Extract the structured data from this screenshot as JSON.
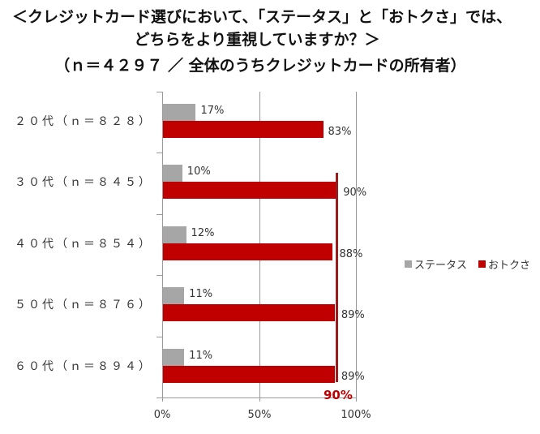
{
  "title": {
    "line1": "＜クレジットカード選びにおいて、「ステータス」と「おトクさ」では、",
    "line2": "どちらをより重視していますか？＞",
    "line3": "（ｎ＝４２９７ ／ 全体のうちクレジットカードの所有者）"
  },
  "legend": {
    "items": [
      {
        "label": "ステータス",
        "color": "#a6a6a6"
      },
      {
        "label": "おトクさ",
        "color": "#c00000"
      }
    ]
  },
  "reference": {
    "label": "90%",
    "value": 90,
    "color": "#9b1c1c"
  },
  "x_ticks": [
    "0%",
    "50%",
    "100%"
  ],
  "chart_data": {
    "type": "bar",
    "orientation": "horizontal",
    "title": "＜クレジットカード選びにおいて、「ステータス」と「おトクさ」では、どちらをより重視していますか？＞（ｎ＝４２９７ ／ 全体のうちクレジットカードの所有者）",
    "categories": [
      "２０代（ｎ＝８２８）",
      "３０代（ｎ＝８４５）",
      "４０代（ｎ＝８５４）",
      "５０代（ｎ＝８７６）",
      "６０代（ｎ＝８９４）"
    ],
    "series": [
      {
        "name": "ステータス",
        "color": "#a6a6a6",
        "values": [
          17,
          10,
          12,
          11,
          11
        ],
        "labels": [
          "17%",
          "10%",
          "12%",
          "11%",
          "11%"
        ]
      },
      {
        "name": "おトクさ",
        "color": "#c00000",
        "values": [
          83,
          90,
          88,
          89,
          89
        ],
        "labels": [
          "83%",
          "90%",
          "88%",
          "89%",
          "89%"
        ]
      }
    ],
    "annotations": [
      {
        "type": "vertical-line",
        "value": 90,
        "label": "90%",
        "range": "30代–60代"
      }
    ],
    "xlabel": "",
    "ylabel": "",
    "xlim": [
      0,
      100
    ],
    "x_tick_labels": [
      "0%",
      "50%",
      "100%"
    ],
    "grid": true,
    "legend_position": "right"
  }
}
